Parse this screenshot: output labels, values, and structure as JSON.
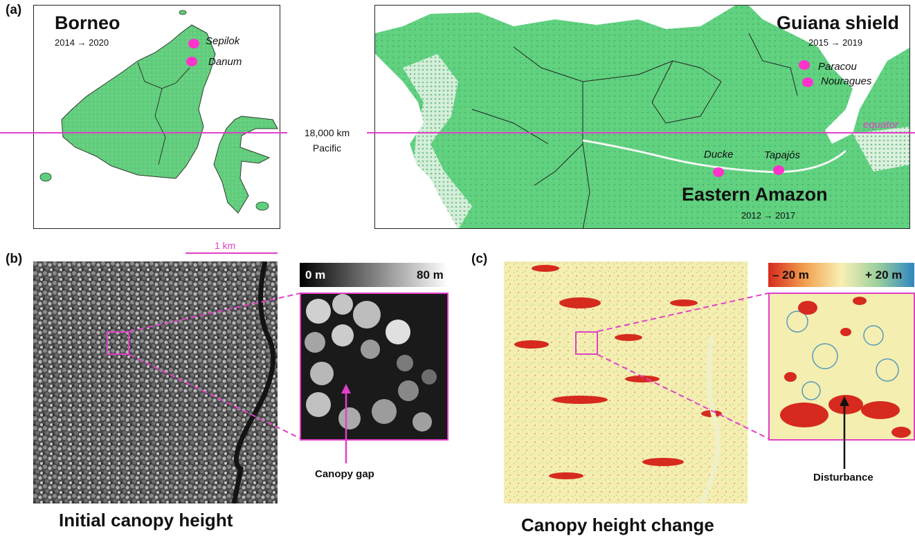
{
  "panel_a": {
    "letter": "(a)",
    "borneo": {
      "title": "Borneo",
      "years": "2014 → 2020",
      "sites": [
        "Sepilok",
        "Danum"
      ]
    },
    "guiana": {
      "title": "Guiana shield",
      "years": "2015 → 2019",
      "sites": [
        "Paracou",
        "Nouragues"
      ]
    },
    "amazon": {
      "title": "Eastern Amazon",
      "years": "2012 → 2017",
      "sites": [
        "Ducke",
        "Tapajós"
      ]
    },
    "distance": "18,000 km",
    "ocean": "Pacific",
    "equator": "equator"
  },
  "panel_b": {
    "letter": "(b)",
    "scalebar": "1 km",
    "colorbar_min": "0 m",
    "colorbar_max": "80 m",
    "annotation": "Canopy gap",
    "caption": "Initial canopy height"
  },
  "panel_c": {
    "letter": "(c)",
    "colorbar_min": "– 20 m",
    "colorbar_max": "+ 20 m",
    "annotation": "Disturbance",
    "caption": "Canopy height change"
  },
  "colors": {
    "accent_magenta": "#e040c8",
    "site_dot": "#ff33cc",
    "forest_green": "#5fd17f",
    "loss_red": "#d62a1e",
    "gain_blue": "#2e86c1"
  }
}
